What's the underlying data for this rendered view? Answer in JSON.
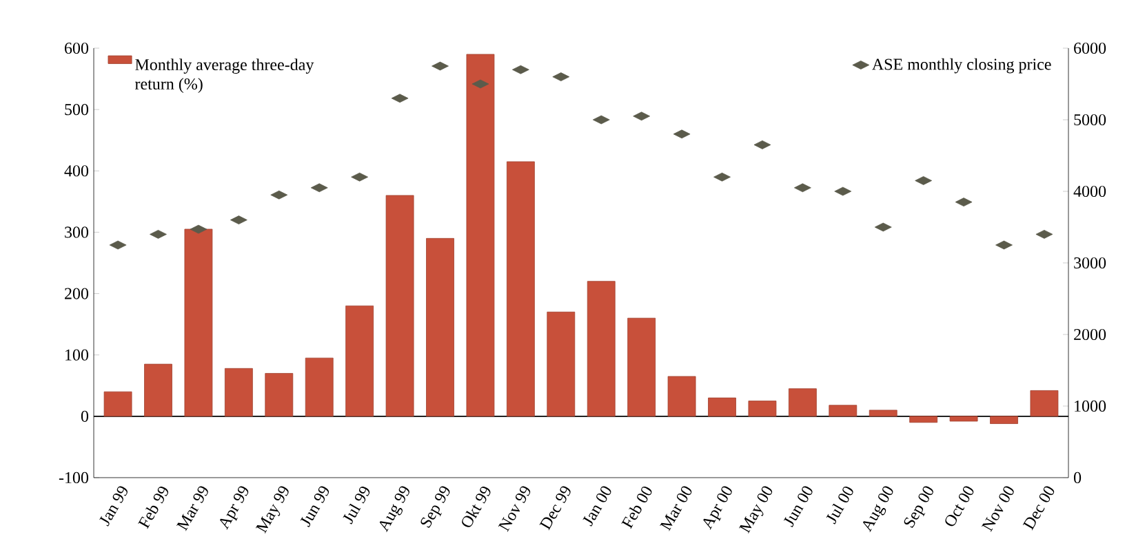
{
  "chart_data": {
    "type": "bar",
    "categories": [
      "Jan 99",
      "Feb 99",
      "Mar 99",
      "Apr 99",
      "May 99",
      "Jun 99",
      "Jul 99",
      "Aug 99",
      "Sep 99",
      "Okt 99",
      "Nov 99",
      "Dec 99",
      "Jan 00",
      "Feb 00",
      "Mar 00",
      "Apr 00",
      "May 00",
      "Jun 00",
      "Jul 00",
      "Aug 00",
      "Sep 00",
      "Oct 00",
      "Nov 00",
      "Dec 00"
    ],
    "series": [
      {
        "name": "Monthly average three-day return (%)",
        "color": "#c8503a",
        "values": [
          40,
          85,
          305,
          78,
          70,
          95,
          180,
          360,
          290,
          590,
          415,
          170,
          220,
          160,
          65,
          30,
          25,
          45,
          18,
          10,
          -10,
          -8,
          -12,
          42
        ]
      },
      {
        "name": "ASE monthly closing price",
        "type": "scatter",
        "axis": "y2",
        "marker": "diamond",
        "color": "#5b5b4b",
        "values": [
          3250,
          3400,
          3470,
          3600,
          3950,
          4050,
          4200,
          5300,
          5750,
          5500,
          5700,
          5600,
          5000,
          5050,
          4800,
          4200,
          4650,
          4050,
          4000,
          3500,
          4150,
          3850,
          3250,
          3400
        ]
      }
    ],
    "ylim": [
      -100,
      600
    ],
    "yticks": [
      -100,
      0,
      100,
      200,
      300,
      400,
      500,
      600
    ],
    "y2lim": [
      0,
      6000
    ],
    "y2ticks": [
      0,
      1000,
      2000,
      3000,
      4000,
      5000,
      6000
    ],
    "ref_lines": [
      {
        "axis": "y",
        "value": 0,
        "color": "#000000"
      }
    ],
    "grid": false,
    "legend": "top"
  }
}
